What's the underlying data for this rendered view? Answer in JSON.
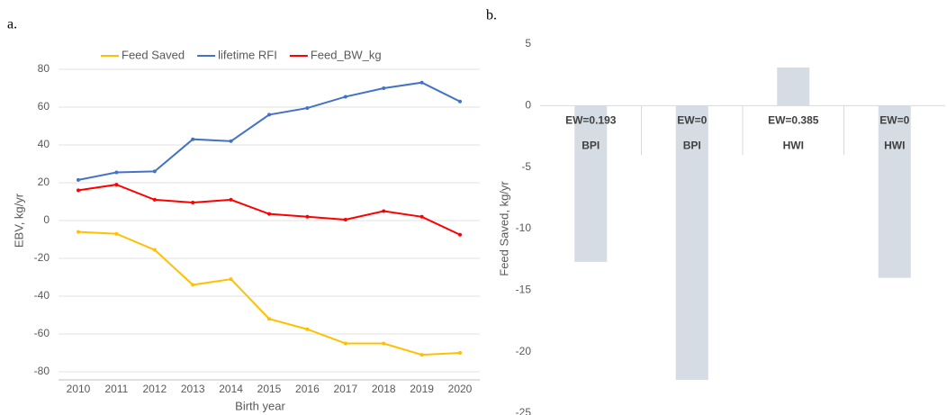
{
  "chart_data": [
    {
      "type": "line",
      "annotation": "a.",
      "xlabel": "Birth year",
      "ylabel": "EBV, kg/yr",
      "categories": [
        "2010",
        "2011",
        "2012",
        "2013",
        "2014",
        "2015",
        "2016",
        "2017",
        "2018",
        "2019",
        "2020"
      ],
      "series": [
        {
          "name": "Feed Saved",
          "color": "#ffc000",
          "values": [
            -6,
            -7,
            -15.5,
            -34,
            -31,
            -52,
            -57.5,
            -65,
            -65,
            -71,
            -70
          ]
        },
        {
          "name": "lifetime RFI",
          "color": "#4472c4",
          "values": [
            21.5,
            25.5,
            26,
            43,
            42,
            56,
            59.5,
            65.5,
            70,
            73,
            63
          ]
        },
        {
          "name": "Feed_BW_kg",
          "color": "#ff0000",
          "values": [
            16,
            19,
            11,
            9.5,
            11,
            3.5,
            2,
            0.5,
            5,
            2,
            -7.5
          ]
        }
      ],
      "ylim": [
        -80,
        80
      ],
      "yticks": [
        -80,
        -60,
        -40,
        -20,
        0,
        20,
        40,
        60,
        80
      ],
      "grid": true,
      "legend": "top"
    },
    {
      "type": "bar",
      "annotation": "b.",
      "ylabel": "Feed Saved, kg/yr",
      "categories": [
        [
          "EW=0.193",
          "BPI"
        ],
        [
          "EW=0",
          "BPI"
        ],
        [
          "EW=0.385",
          "HWI"
        ],
        [
          "EW=0",
          "HWI"
        ]
      ],
      "values": [
        -12.7,
        -22.3,
        3.1,
        -14
      ],
      "color": "#d6dce4",
      "ylim": [
        -25,
        5
      ],
      "yticks": [
        -25,
        -20,
        -15,
        -10,
        -5,
        0,
        5
      ],
      "grid": false
    }
  ]
}
